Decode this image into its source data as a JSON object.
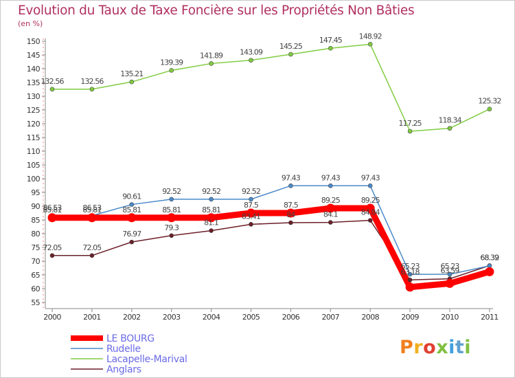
{
  "chart_data": {
    "type": "line",
    "title": "Evolution du Taux de Taxe Foncière sur les Propriétés Non Bâties",
    "ylabel": "(en %)",
    "xlabel": "",
    "categories": [
      "2000",
      "2001",
      "2002",
      "2003",
      "2004",
      "2005",
      "2006",
      "2007",
      "2008",
      "2009",
      "2010",
      "2011"
    ],
    "ylim": [
      55,
      150
    ],
    "yticks": [
      55,
      60,
      65,
      70,
      75,
      80,
      85,
      90,
      95,
      100,
      105,
      110,
      115,
      120,
      125,
      130,
      135,
      140,
      145,
      150
    ],
    "series": [
      {
        "name": "LE BOURG",
        "color": "#ff0000",
        "values": [
          85.81,
          85.81,
          85.81,
          85.81,
          85.81,
          87.5,
          87.5,
          89.25,
          89.25,
          60.56,
          61.9,
          66.16
        ],
        "labels": [
          "85.81",
          "85.81",
          "85.81",
          "85.81",
          "85.81",
          "87.5",
          "87.5",
          "89.25",
          "89.25",
          "",
          "",
          ""
        ]
      },
      {
        "name": "Rudelle",
        "color": "#4a8ac8",
        "values": [
          86.53,
          86.53,
          90.61,
          92.52,
          92.52,
          92.52,
          97.43,
          97.43,
          97.43,
          65.23,
          65.23,
          68.32
        ],
        "labels": [
          "86.53",
          "86.53",
          "90.61",
          "92.52",
          "92.52",
          "92.52",
          "97.43",
          "97.43",
          "97.43",
          "65.23",
          "65.23",
          "68.32"
        ]
      },
      {
        "name": "Lacapelle-Marival",
        "color": "#80cc40",
        "values": [
          132.56,
          132.56,
          135.21,
          139.39,
          141.89,
          143.09,
          145.25,
          147.45,
          148.92,
          117.25,
          118.34,
          125.32
        ],
        "labels": [
          "132.56",
          "132.56",
          "135.21",
          "139.39",
          "141.89",
          "143.09",
          "145.25",
          "147.45",
          "148.92",
          "117.25",
          "118.34",
          "125.32"
        ]
      },
      {
        "name": "Anglars",
        "color": "#6b1f28",
        "values": [
          72.05,
          72.05,
          76.97,
          79.3,
          81.1,
          83.41,
          84.0,
          84.1,
          84.84,
          63.18,
          63.59,
          68.39
        ],
        "labels": [
          "72.05",
          "72.05",
          "76.97",
          "79.3",
          "81.1",
          "83.41",
          "84",
          "84.1",
          "84.84",
          "63.18",
          "63.59",
          "68.39"
        ]
      }
    ],
    "legend": "bottom-left",
    "grid": false
  },
  "legend_items": [
    "LE BOURG",
    "Rudelle",
    "Lacapelle-Marival",
    "Anglars"
  ],
  "brand": {
    "logo_text": "Proxiti",
    "colors": [
      "#f08020",
      "#f0b020",
      "#e04030",
      "#80c040",
      "#40a0e0",
      "#60a0d0",
      "#80c040"
    ]
  }
}
